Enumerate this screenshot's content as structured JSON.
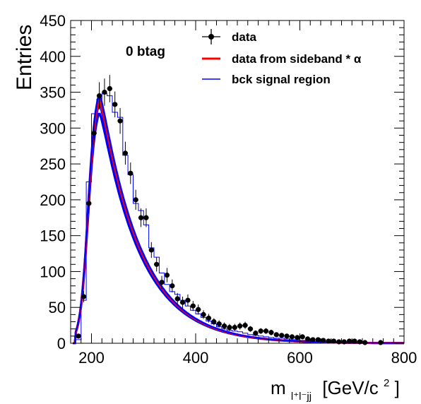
{
  "chart_data": {
    "type": "line",
    "annotation": "0 btag",
    "ylabel": "Entries",
    "xlabel_main": "m",
    "xlabel_sub": "l⁺l⁻jj",
    "xlabel_unit": "[GeV/c",
    "xlabel_unit_sup": "2",
    "xlabel_unit_close": "]",
    "xlim": [
      160,
      800
    ],
    "ylim": [
      0,
      450
    ],
    "x_ticks": [
      200,
      400,
      600,
      800
    ],
    "y_ticks": [
      0,
      50,
      100,
      150,
      200,
      250,
      300,
      350,
      400,
      450
    ],
    "legend": {
      "position": "top-right",
      "entries": [
        {
          "label": "data",
          "style": "marker",
          "color": "#000000"
        },
        {
          "label": "data from sideband * α",
          "style": "line",
          "color": "#ff0000"
        },
        {
          "label": "bck signal region",
          "style": "line",
          "color": "#0000ff"
        }
      ]
    },
    "series": [
      {
        "name": "data",
        "style": "points",
        "color": "#000000",
        "x": [
          175,
          185,
          195,
          205,
          215,
          225,
          235,
          245,
          255,
          265,
          275,
          285,
          295,
          305,
          315,
          325,
          335,
          345,
          355,
          365,
          375,
          385,
          395,
          405,
          415,
          425,
          435,
          445,
          455,
          465,
          475,
          485,
          495,
          505,
          515,
          525,
          535,
          545,
          555,
          565,
          575,
          585,
          595,
          605,
          615,
          625,
          635,
          645,
          655,
          665,
          675,
          685,
          695,
          705,
          715,
          725,
          755
        ],
        "y": [
          10,
          65,
          195,
          293,
          345,
          350,
          355,
          333,
          310,
          265,
          237,
          200,
          175,
          175,
          130,
          110,
          85,
          95,
          80,
          62,
          57,
          60,
          52,
          47,
          40,
          35,
          30,
          27,
          24,
          22,
          22,
          24,
          25,
          20,
          14,
          17,
          17,
          15,
          12,
          11,
          10,
          9,
          8,
          9,
          6,
          5,
          5,
          4,
          3,
          3,
          2,
          2,
          3,
          3,
          2,
          1,
          1
        ],
        "yerr": [
          3,
          8,
          14,
          17,
          19,
          19,
          19,
          18,
          18,
          16,
          15,
          14,
          13,
          13,
          11,
          10,
          9,
          10,
          9,
          8,
          8,
          8,
          7,
          7,
          6,
          6,
          5,
          5,
          5,
          5,
          5,
          5,
          5,
          4,
          4,
          4,
          4,
          4,
          3,
          3,
          3,
          3,
          3,
          3,
          2,
          2,
          2,
          2,
          2,
          2,
          1,
          1,
          2,
          2,
          1,
          1,
          1
        ]
      },
      {
        "name": "bck signal region",
        "style": "histogram",
        "color": "#0000ff",
        "edges": [
          160,
          170,
          180,
          190,
          200,
          210,
          220,
          230,
          240,
          250,
          260,
          270,
          280,
          290,
          300,
          310,
          320,
          330,
          340,
          350,
          360,
          370,
          380,
          390,
          400,
          410,
          420,
          430,
          440,
          450,
          460,
          470,
          480,
          490,
          500,
          510,
          520,
          530,
          540,
          550,
          560,
          570,
          580,
          590,
          600,
          610,
          620,
          630,
          640,
          650,
          660,
          670,
          680,
          690,
          700,
          710,
          720,
          730,
          740,
          750,
          760,
          770,
          780,
          790,
          800
        ],
        "values": [
          0,
          5,
          60,
          225,
          320,
          340,
          348,
          345,
          322,
          315,
          262,
          235,
          195,
          185,
          165,
          133,
          120,
          98,
          82,
          72,
          68,
          60,
          52,
          46,
          41,
          36,
          31,
          27,
          23,
          20,
          18,
          17,
          16,
          14,
          12,
          11,
          10,
          9,
          8,
          7,
          7,
          6,
          5,
          5,
          4,
          4,
          3,
          3,
          2,
          2,
          2,
          2,
          1,
          1,
          1,
          1,
          1,
          1,
          0,
          0,
          0,
          0,
          0,
          0
        ]
      },
      {
        "name": "data from sideband * α",
        "style": "smooth-line",
        "color": "#ff0000",
        "peak": 340
      },
      {
        "name": "bck signal region",
        "style": "smooth-band",
        "color": "#0000ff",
        "peak_high": 348,
        "peak_low": 322
      }
    ]
  }
}
